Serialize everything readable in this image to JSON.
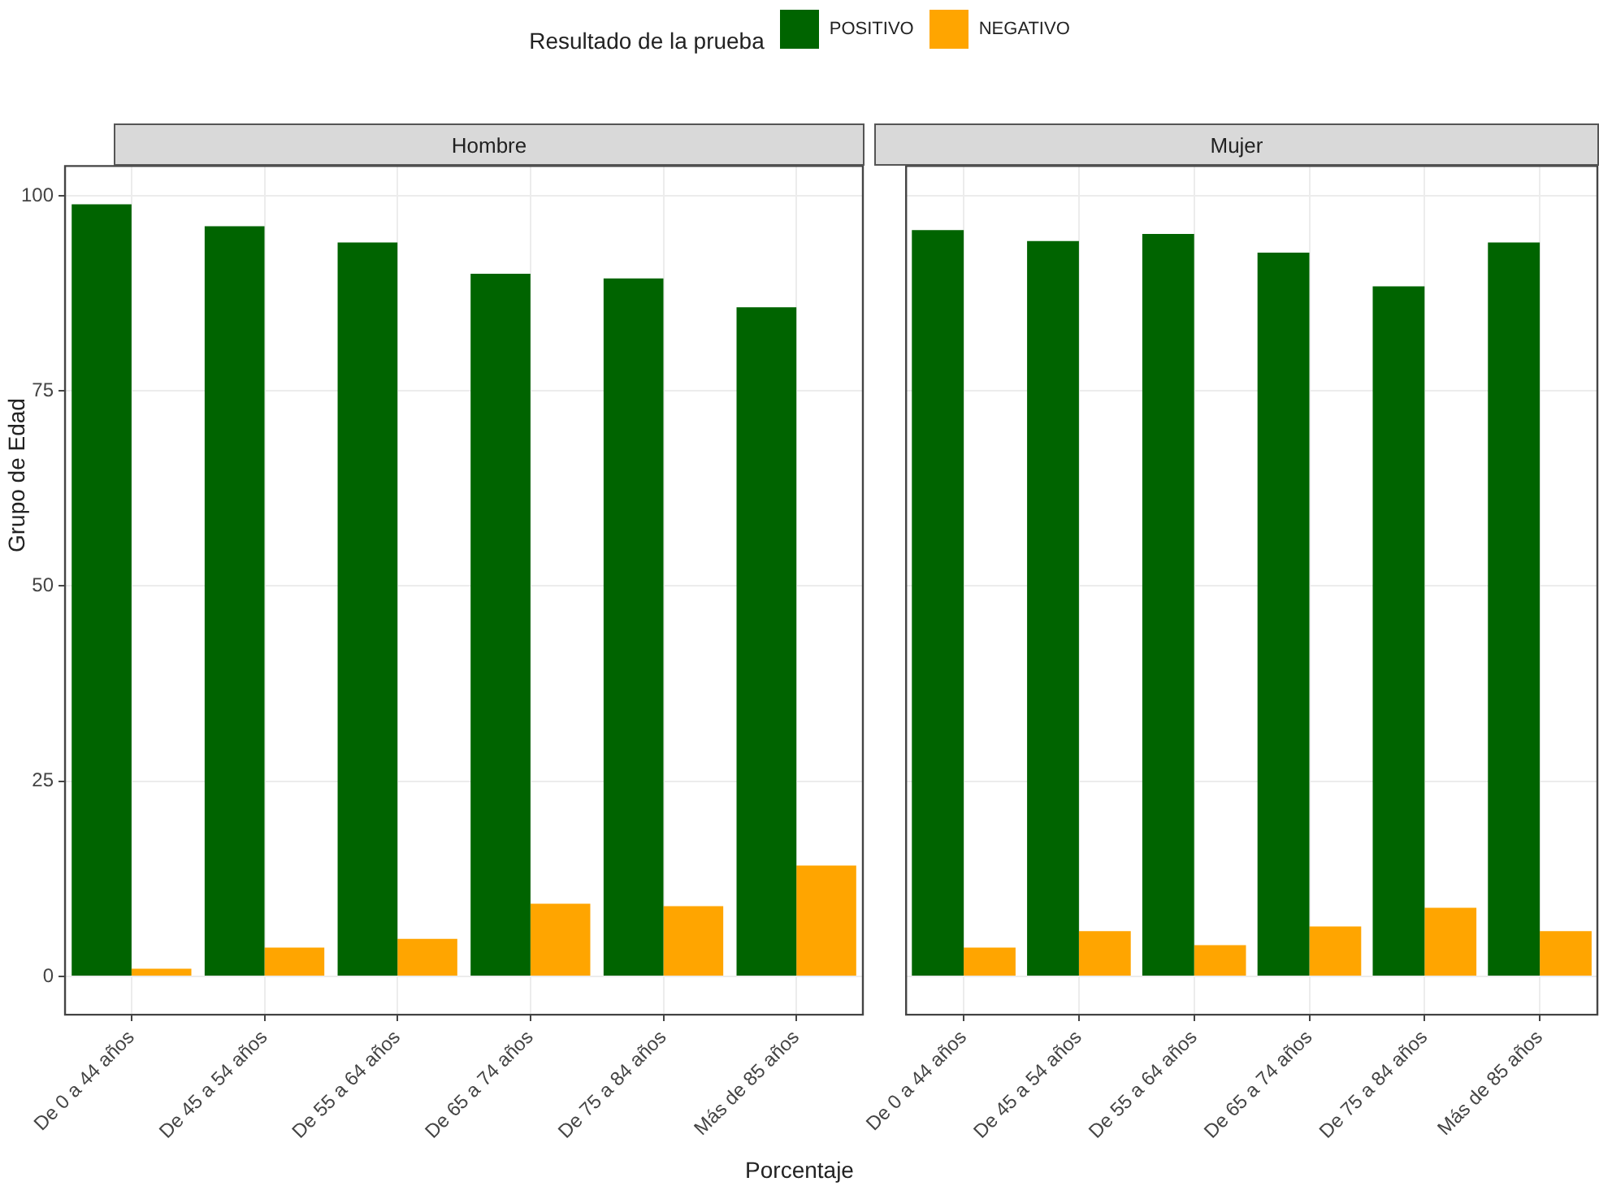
{
  "chart_data": [
    {
      "type": "bar",
      "title": "Hombre",
      "xlabel": "Porcentaje",
      "ylabel": "Grupo de Edad",
      "legend_title": "Resultado de la prueba",
      "legend": "top",
      "categories": [
        "De 0 a 44 años",
        "De 45 a 54 años",
        "De 55 a 64 años",
        "De 65 a 74 años",
        "De 75 a 84 años",
        "Más de 85 años"
      ],
      "series": [
        {
          "name": "POSITIVO",
          "color": "#006400",
          "values": [
            98.9,
            96.1,
            94.0,
            90.0,
            89.4,
            85.7
          ]
        },
        {
          "name": "NEGATIVO",
          "color": "#ffa500",
          "values": [
            1.0,
            3.7,
            4.8,
            9.3,
            9.0,
            14.2
          ]
        }
      ],
      "ylim": [
        -4.9,
        103.8
      ],
      "yticks": [
        0,
        25,
        50,
        75,
        100
      ],
      "grid": true
    },
    {
      "type": "bar",
      "title": "Mujer",
      "tick_labels": "x",
      "categories": [
        "De 0 a 44 años",
        "De 45 a 54 años",
        "De 55 a 64 años",
        "De 65 a 74 años",
        "De 75 a 84 años",
        "Más de 85 años"
      ],
      "series": [
        {
          "name": "POSITIVO",
          "color": "#006400",
          "values": [
            95.6,
            94.2,
            95.1,
            92.7,
            88.4,
            94.0
          ]
        },
        {
          "name": "NEGATIVO",
          "color": "#ffa500",
          "values": [
            3.7,
            5.8,
            4.0,
            6.4,
            8.8,
            5.8
          ]
        }
      ],
      "ylim": [
        -4.9,
        103.8
      ],
      "yticks": [
        0,
        25,
        50,
        75,
        100
      ],
      "grid": true
    }
  ]
}
